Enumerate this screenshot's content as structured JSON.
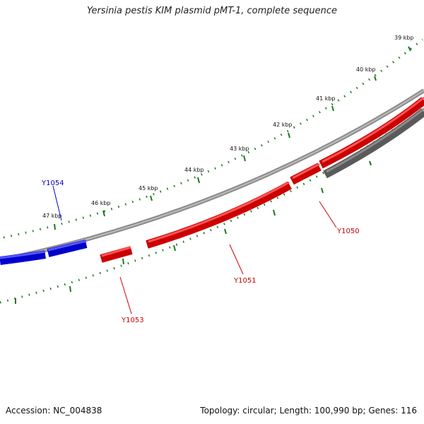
{
  "title": "Yersinia pestis KIM plasmid pMT-1, complete sequence",
  "footer": {
    "accession": "Accession: NC_004838",
    "summary": "Topology: circular; Length: 100,990 bp; Genes: 116"
  },
  "ticks": [
    "39 kbp",
    "40 kbp",
    "41 kbp",
    "42 kbp",
    "43 kbp",
    "44 kbp",
    "45 kbp",
    "46 kbp",
    "47 kbp"
  ],
  "genes": {
    "y1050": "Y1050",
    "y1051": "Y1051",
    "y1053": "Y1053",
    "y1054": "Y1054"
  },
  "colors": {
    "forward": "#ff0000",
    "reverse": "#0000ee",
    "other": "#666666",
    "ruler": "#1a7a1a",
    "backbone": "#8c8c8c"
  }
}
